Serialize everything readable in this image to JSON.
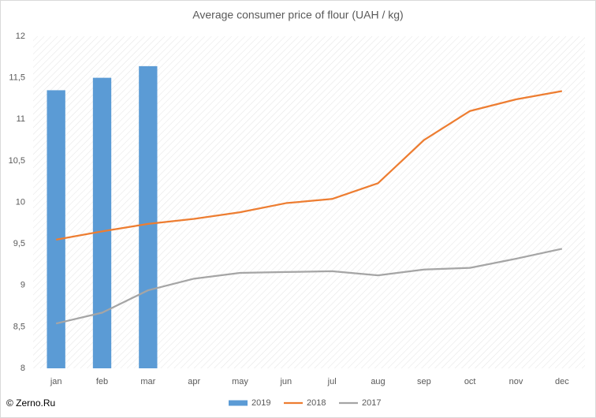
{
  "chart_data": {
    "type": "bar-line",
    "title": "Average consumer price of flour (UAH / kg)",
    "categories": [
      "jan",
      "feb",
      "mar",
      "apr",
      "may",
      "jun",
      "jul",
      "aug",
      "sep",
      "oct",
      "nov",
      "dec"
    ],
    "series": [
      {
        "name": "2019",
        "type": "bar",
        "color": "#5b9bd5",
        "values": [
          11.35,
          11.5,
          11.64,
          null,
          null,
          null,
          null,
          null,
          null,
          null,
          null,
          null
        ]
      },
      {
        "name": "2018",
        "type": "line",
        "color": "#ed7d31",
        "values": [
          9.55,
          9.65,
          9.74,
          9.8,
          9.88,
          9.99,
          10.04,
          10.23,
          10.75,
          11.1,
          11.24,
          11.34
        ]
      },
      {
        "name": "2017",
        "type": "line",
        "color": "#a5a5a5",
        "values": [
          8.54,
          8.67,
          8.94,
          9.08,
          9.15,
          9.16,
          9.17,
          9.12,
          9.19,
          9.21,
          9.32,
          9.44
        ]
      }
    ],
    "ylim": [
      8,
      12
    ],
    "yticks": [
      8,
      {
        "value": 8.5,
        "label": "8,5"
      },
      9,
      {
        "value": 9.5,
        "label": "9,5"
      },
      10,
      {
        "value": 10.5,
        "label": "10,5"
      },
      11,
      {
        "value": 11.5,
        "label": "11,5"
      },
      12
    ],
    "grid": false,
    "legend": "bottom",
    "credit": "© Zerno.Ru"
  }
}
